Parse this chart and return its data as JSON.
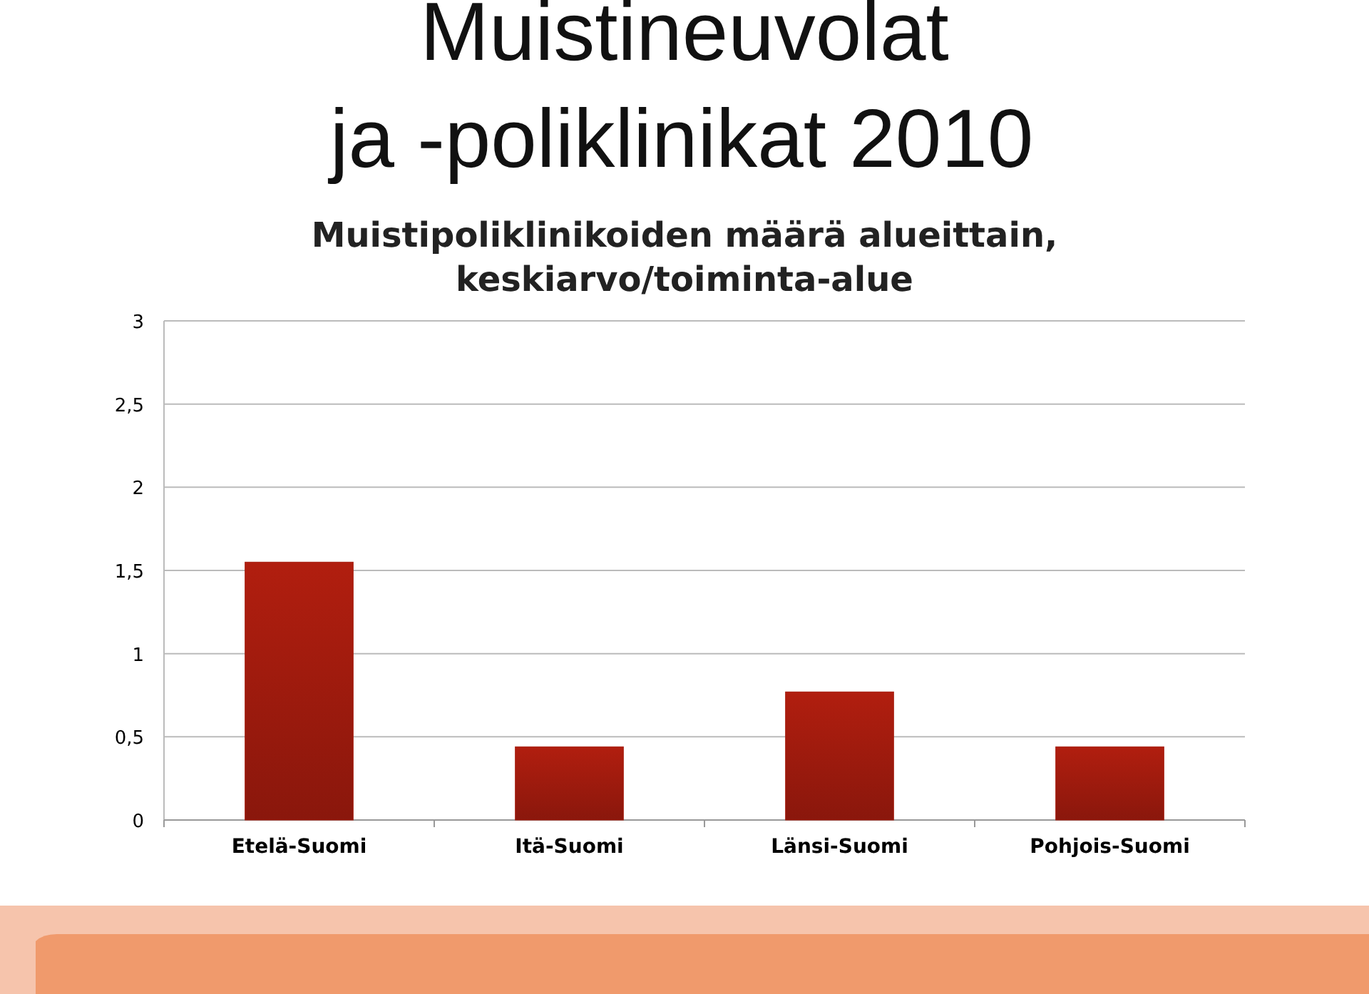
{
  "chart_data": {
    "type": "bar",
    "title": "Muistineuvolat ja -poliklinikat 2010",
    "subtitle": "Muistipoliklinikoiden määrä alueittain, keskiarvo/toiminta-alue",
    "categories": [
      "Etelä-Suomi",
      "Itä-Suomi",
      "Länsi-Suomi",
      "Pohjois-Suomi"
    ],
    "values": [
      1.55,
      0.44,
      0.77,
      0.44
    ],
    "color": "#a51c0e",
    "ylim": [
      0,
      3
    ],
    "yticks": [
      0,
      {
        "value": 0.5,
        "label": "0,5"
      },
      1,
      {
        "value": 1.5,
        "label": "1,5"
      },
      2,
      {
        "value": 2.5,
        "label": "2,5"
      },
      3
    ],
    "grid": "y"
  }
}
